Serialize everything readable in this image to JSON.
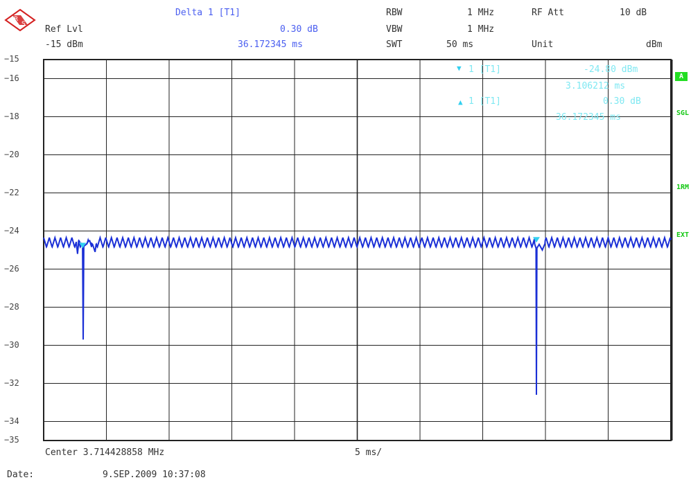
{
  "header": {
    "marker_title": "Delta 1 [T1]",
    "ref_level_label": "Ref Lvl",
    "ref_level_value": "-15 dBm",
    "delta_value": "0.30 dB",
    "delta_time": "36.172345 ms",
    "rbw_label": "RBW",
    "rbw_value": "1 MHz",
    "vbw_label": "VBW",
    "vbw_value": "1 MHz",
    "swt_label": "SWT",
    "swt_value": "50 ms",
    "rf_att_label": "RF Att",
    "rf_att_value": "10 dB",
    "unit_label": "Unit",
    "unit_value": "dBm"
  },
  "markers": {
    "m1_label": "1  [T1]",
    "m1_level": "-24.80 dBm",
    "m1_time": "3.106212 ms",
    "d1_label": "1  [T1]",
    "d1_level": "0.30 dB",
    "d1_time": "36.172345 ms"
  },
  "side_badges": {
    "trace": "A",
    "sweep": "SGL",
    "detector": "1RM",
    "trigger": "EXT"
  },
  "footer": {
    "center": "Center 3.714428858 MHz",
    "span": "5 ms/",
    "date_label": "Date:",
    "date_value": "9.SEP.2009   10:37:08"
  },
  "colors": {
    "trace": "#1a2fd6",
    "marker": "#33d0f0",
    "header_blue": "#4a5ef0",
    "badge_green": "#22dd22"
  },
  "chart_data": {
    "type": "line",
    "xlabel": "",
    "ylabel": "",
    "xlim": [
      0,
      50
    ],
    "ylim": [
      -35,
      -15
    ],
    "x_unit": "ms",
    "y_unit": "dBm",
    "yticks": [
      -15,
      -16,
      -18,
      -20,
      -22,
      -24,
      -26,
      -28,
      -30,
      -32,
      -34,
      -35
    ],
    "grid": true,
    "baseline_level": -24.6,
    "ripple_amplitude": 0.25,
    "ripple_period_ms": 0.45,
    "series": [
      {
        "points": [
          [
            0,
            -24.6
          ],
          [
            2.6,
            -24.6
          ],
          [
            2.7,
            -25.2
          ],
          [
            2.8,
            -24.5
          ],
          [
            3.05,
            -24.7
          ],
          [
            3.1,
            -24.8
          ],
          [
            3.15,
            -29.7
          ],
          [
            3.2,
            -24.8
          ],
          [
            3.4,
            -24.7
          ],
          [
            3.6,
            -24.5
          ],
          [
            3.9,
            -24.7
          ],
          [
            4.1,
            -25.1
          ],
          [
            4.2,
            -24.6
          ],
          [
            38.0,
            -24.6
          ],
          [
            39.1,
            -24.6
          ],
          [
            39.25,
            -24.9
          ],
          [
            39.28,
            -32.6
          ],
          [
            39.32,
            -24.9
          ],
          [
            39.5,
            -24.7
          ],
          [
            39.75,
            -25.0
          ],
          [
            40.0,
            -24.6
          ],
          [
            50,
            -24.6
          ]
        ]
      }
    ],
    "marker_points": [
      {
        "x": 3.106212,
        "y": -24.8
      },
      {
        "x": 39.278557,
        "y": -24.5
      }
    ]
  }
}
